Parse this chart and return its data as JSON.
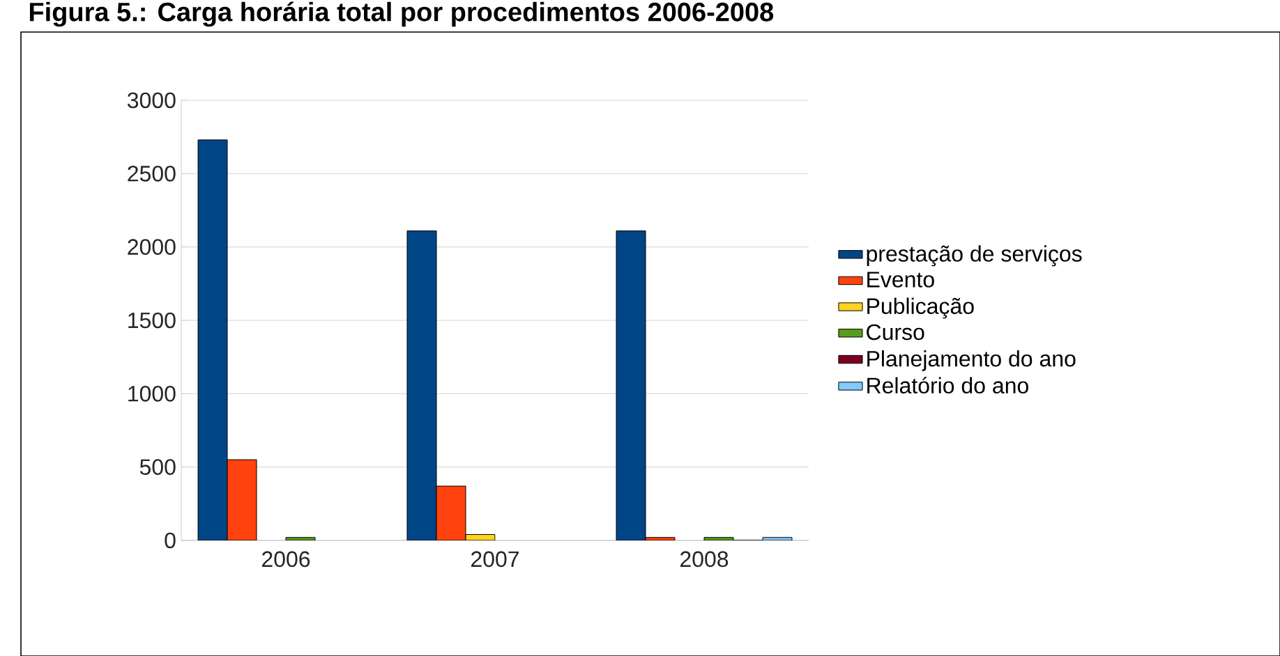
{
  "chart_data": {
    "type": "bar",
    "title": "Figura 5.: Carga horária total por procedimentos 2006-2008",
    "categories": [
      "2006",
      "2007",
      "2008"
    ],
    "series": [
      {
        "name": "prestação de serviços",
        "color": "#004586",
        "values": [
          2730,
          2110,
          2110
        ]
      },
      {
        "name": "Evento",
        "color": "#ff420e",
        "values": [
          550,
          370,
          20
        ]
      },
      {
        "name": "Publicação",
        "color": "#ffd320",
        "values": [
          null,
          40,
          null
        ]
      },
      {
        "name": "Curso",
        "color": "#579d1c",
        "values": [
          20,
          null,
          20
        ]
      },
      {
        "name": "Planejamento do ano",
        "color": "#7e0021",
        "values": [
          null,
          null,
          0
        ]
      },
      {
        "name": "Relatório do ano",
        "color": "#83caff",
        "values": [
          null,
          null,
          20
        ]
      }
    ],
    "ylim": [
      0,
      3000
    ],
    "yticks": [
      0,
      500,
      1000,
      1500,
      2000,
      2500,
      3000
    ],
    "grid": "y",
    "legend": "right"
  }
}
